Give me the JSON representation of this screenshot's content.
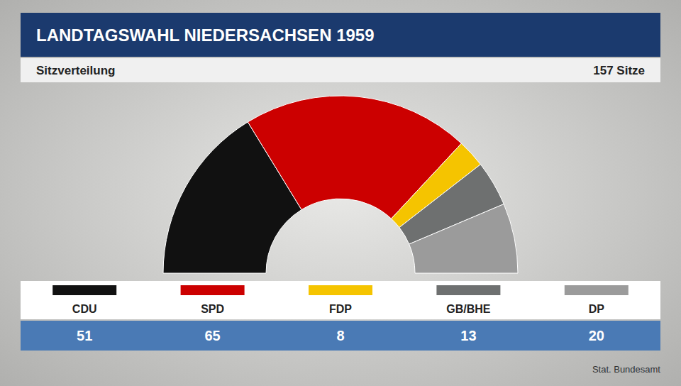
{
  "chart_data": {
    "type": "semicircle",
    "title": "LANDTAGSWAHL NIEDERSACHSEN 1959",
    "subtitle": "Sitzverteilung",
    "annotations": [
      "157 Sitze"
    ],
    "source": "Stat. Bundesamt",
    "categories": [
      "CDU",
      "SPD",
      "FDP",
      "GB/BHE",
      "DP"
    ],
    "values": [
      51,
      65,
      8,
      13,
      20
    ],
    "colors": [
      "#111111",
      "#cc0000",
      "#f5c400",
      "#6e7070",
      "#9b9b9b"
    ],
    "data_labels": true
  }
}
